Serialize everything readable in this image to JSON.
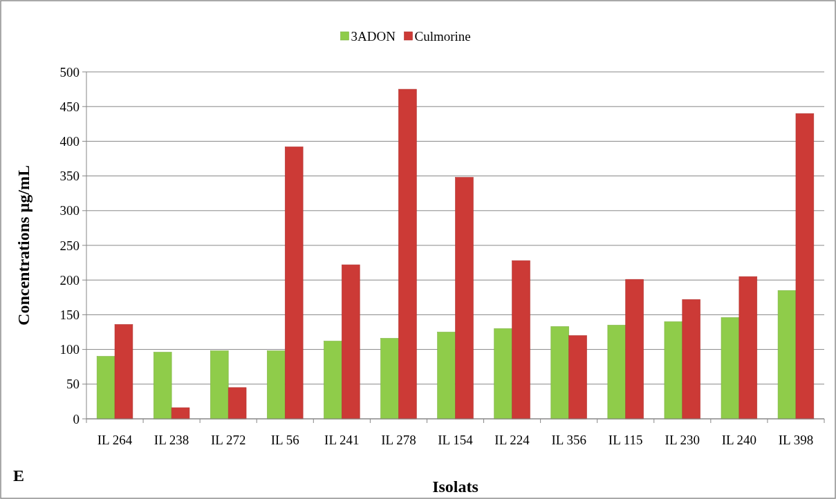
{
  "chart_data": {
    "type": "bar",
    "xlabel": "Isolats",
    "ylabel": "Concentrations µg/mL",
    "categories": [
      "IL 264",
      "IL 238",
      "IL 272",
      "IL 56",
      "IL 241",
      "IL 278",
      "IL 154",
      "IL 224",
      "IL 356",
      "IL 115",
      "IL 230",
      "IL 240",
      "IL 398"
    ],
    "series": [
      {
        "name": "3ADON",
        "color": "#8fcc4a",
        "values": [
          90,
          96,
          98,
          98,
          112,
          116,
          125,
          130,
          133,
          135,
          140,
          146,
          185
        ]
      },
      {
        "name": "Culmorine",
        "color": "#cc3a36",
        "values": [
          136,
          16,
          45,
          392,
          222,
          475,
          348,
          228,
          120,
          201,
          172,
          205,
          440
        ]
      }
    ],
    "ylim": [
      0,
      500
    ],
    "yticks": [
      0,
      50,
      100,
      150,
      200,
      250,
      300,
      350,
      400,
      450,
      500
    ],
    "grid": "y",
    "legend": "top",
    "annotations": [
      "E"
    ]
  }
}
